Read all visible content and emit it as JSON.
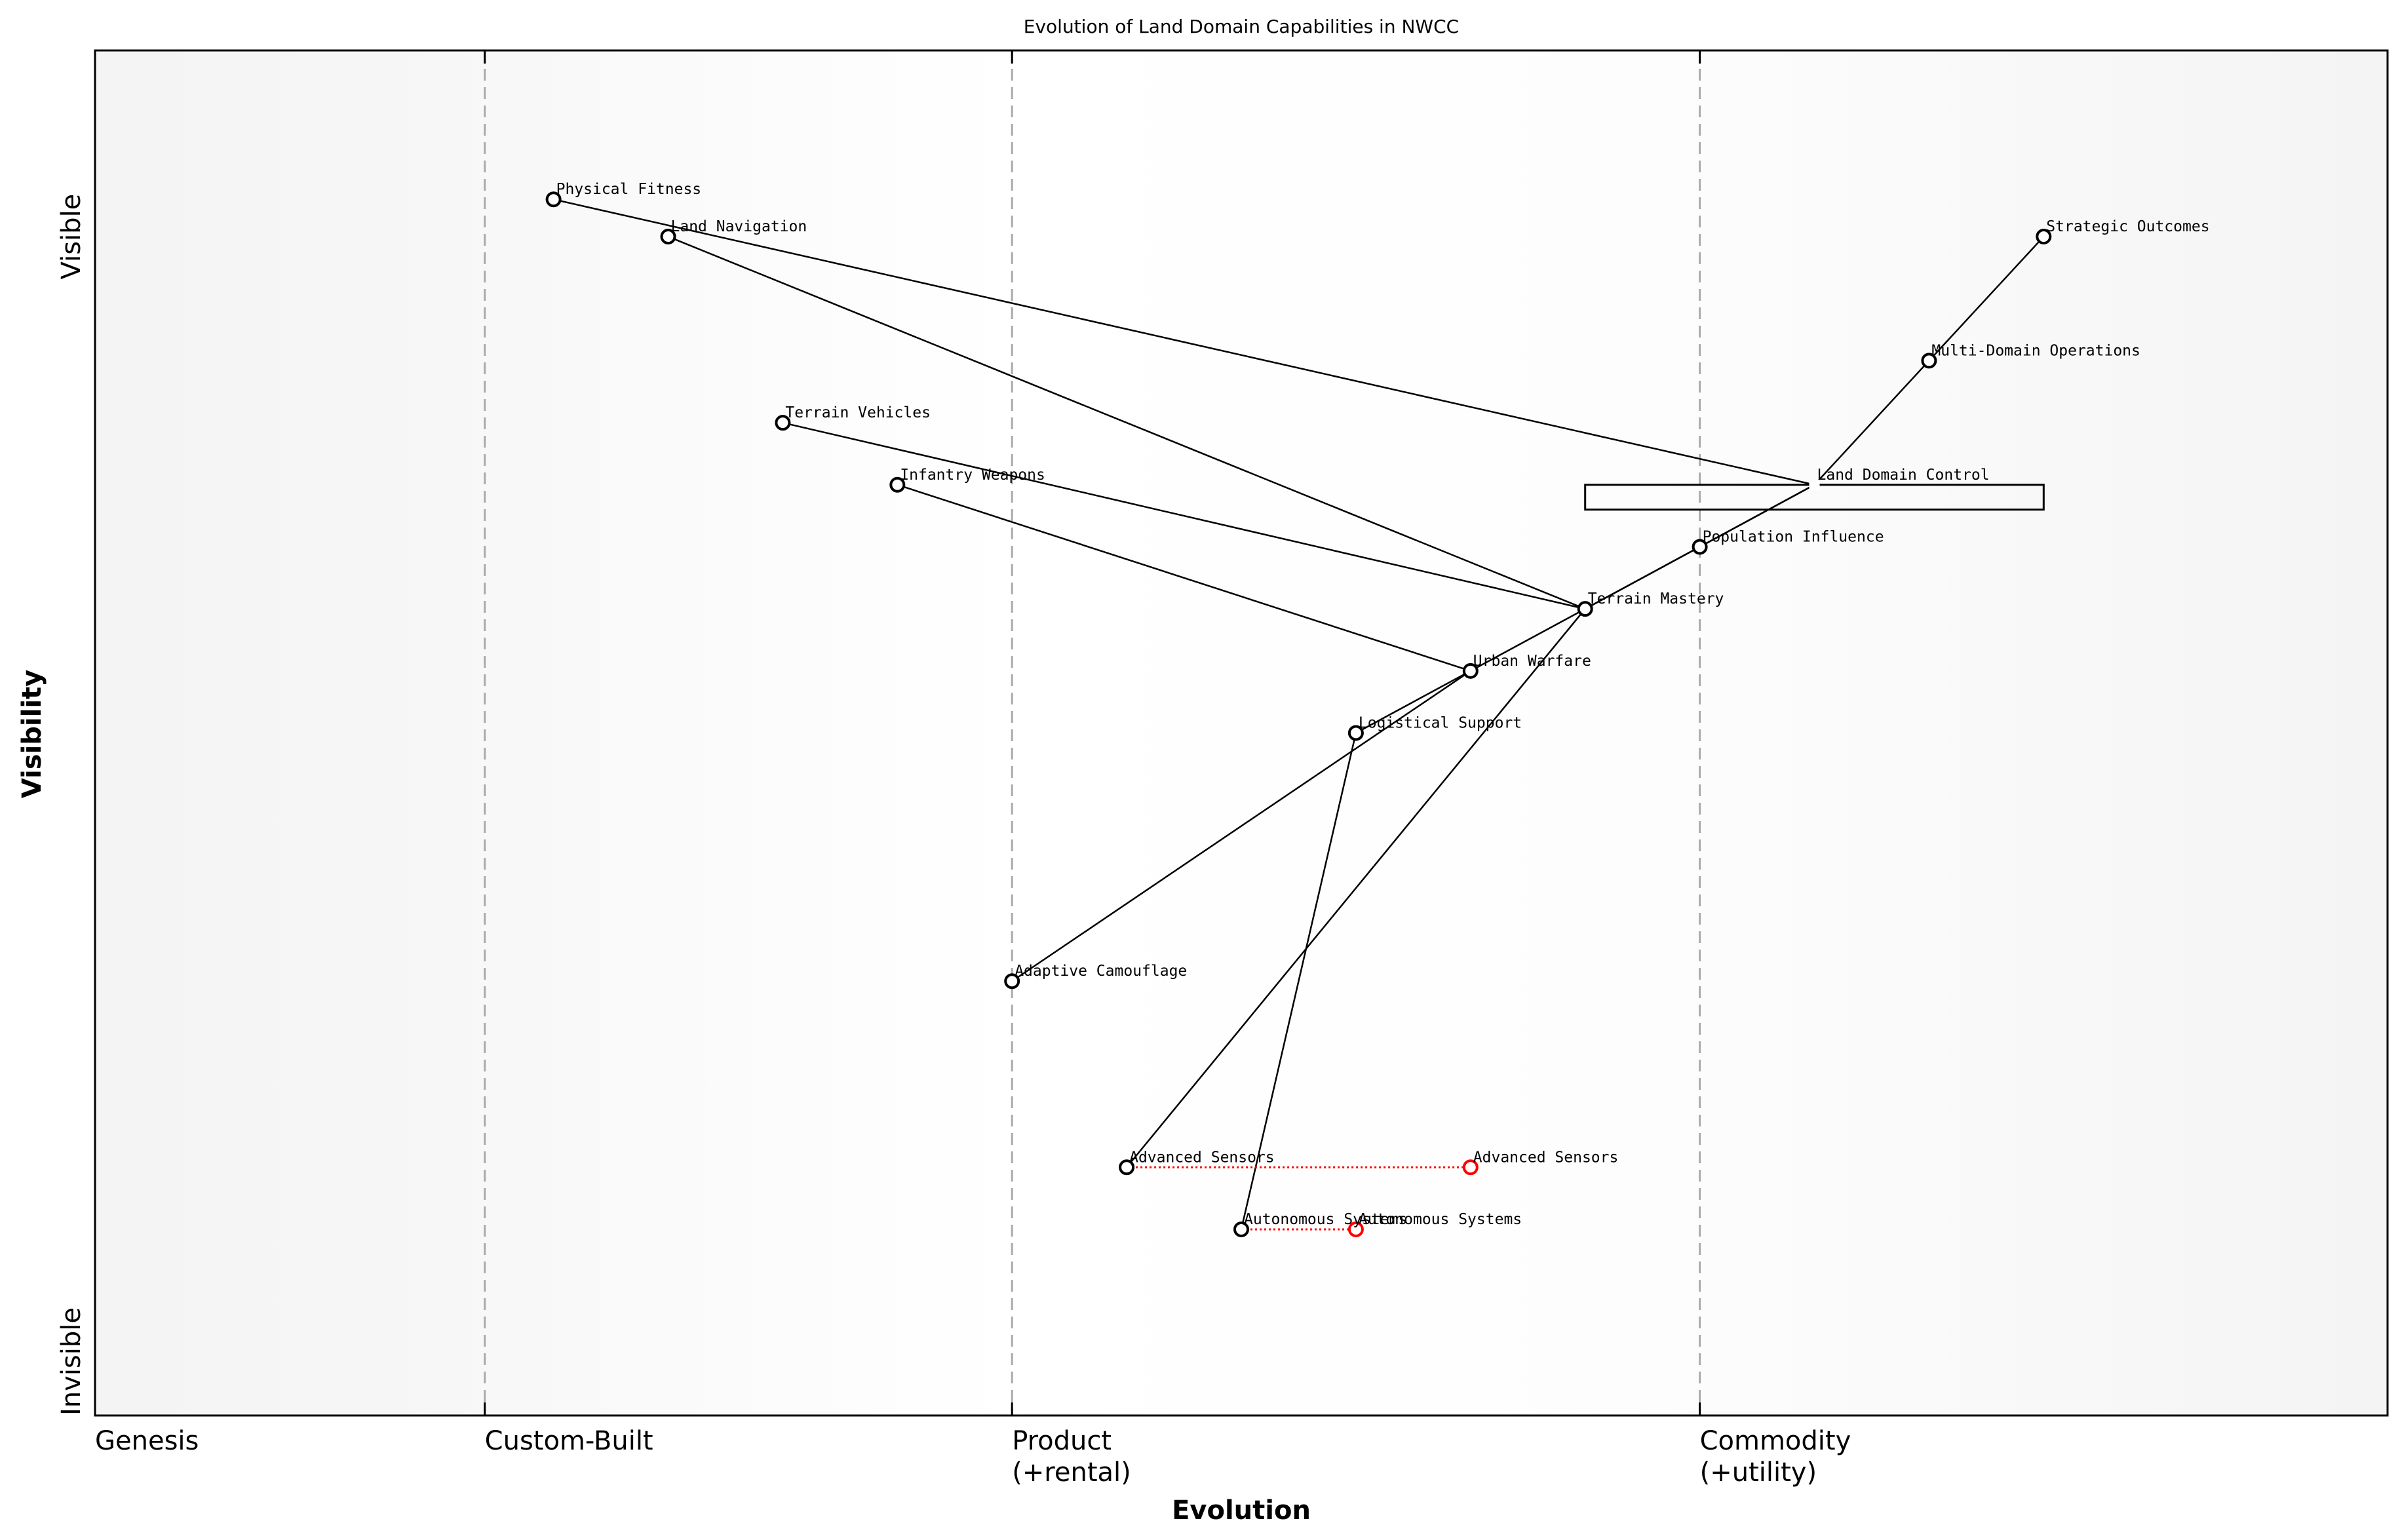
{
  "chart_data": {
    "type": "scatter",
    "title": "Evolution of Land Domain Capabilities in NWCC",
    "xlabel": "Evolution",
    "ylabel": "Visibility",
    "xlim": [
      0,
      1
    ],
    "ylim": [
      0,
      1.1
    ],
    "y_ticks": [
      {
        "label": "Visible",
        "value": 0.95
      },
      {
        "label": "Invisible",
        "value": 0
      }
    ],
    "stages": [
      {
        "label": "Genesis",
        "value": 0
      },
      {
        "label": "Custom-Built",
        "value": 0.17
      },
      {
        "label": "Product\n(+rental)",
        "value": 0.4
      },
      {
        "label": "Commodity\n(+utility)",
        "value": 0.7
      }
    ],
    "components": [
      {
        "name": "Physical Fitness",
        "evolution": 0.2,
        "visibility": 0.98
      },
      {
        "name": "Land Navigation",
        "evolution": 0.25,
        "visibility": 0.95
      },
      {
        "name": "Terrain Vehicles",
        "evolution": 0.3,
        "visibility": 0.8
      },
      {
        "name": "Infantry Weapons",
        "evolution": 0.35,
        "visibility": 0.75
      },
      {
        "name": "Adaptive Camouflage",
        "evolution": 0.4,
        "visibility": 0.35
      },
      {
        "name": "Advanced Sensors",
        "evolution": 0.45,
        "visibility": 0.2
      },
      {
        "name": "Autonomous Systems",
        "evolution": 0.5,
        "visibility": 0.15
      },
      {
        "name": "Logistical Support",
        "evolution": 0.55,
        "visibility": 0.55
      },
      {
        "name": "Urban Warfare",
        "evolution": 0.6,
        "visibility": 0.6
      },
      {
        "name": "Terrain Mastery",
        "evolution": 0.65,
        "visibility": 0.65
      },
      {
        "name": "Population Influence",
        "evolution": 0.7,
        "visibility": 0.7
      },
      {
        "name": "Land Domain Control",
        "evolution": 0.75,
        "visibility": 0.75,
        "marker": "square"
      },
      {
        "name": "Multi-Domain Operations",
        "evolution": 0.8,
        "visibility": 0.85
      },
      {
        "name": "Strategic Outcomes",
        "evolution": 0.85,
        "visibility": 0.95
      }
    ],
    "links": [
      [
        "Physical Fitness",
        "Land Domain Control"
      ],
      [
        "Land Navigation",
        "Terrain Mastery"
      ],
      [
        "Terrain Vehicles",
        "Terrain Mastery"
      ],
      [
        "Infantry Weapons",
        "Urban Warfare"
      ],
      [
        "Strategic Outcomes",
        "Multi-Domain Operations"
      ],
      [
        "Multi-Domain Operations",
        "Land Domain Control"
      ],
      [
        "Land Domain Control",
        "Population Influence"
      ],
      [
        "Land Domain Control",
        "Terrain Mastery"
      ],
      [
        "Population Influence",
        "Terrain Mastery"
      ],
      [
        "Terrain Mastery",
        "Urban Warfare"
      ],
      [
        "Terrain Mastery",
        "Advanced Sensors"
      ],
      [
        "Urban Warfare",
        "Logistical Support"
      ],
      [
        "Urban Warfare",
        "Adaptive Camouflage"
      ],
      [
        "Logistical Support",
        "Autonomous Systems"
      ]
    ],
    "evolutions": [
      {
        "name": "Advanced Sensors",
        "from": 0.45,
        "to": 0.6,
        "visibility": 0.2
      },
      {
        "name": "Autonomous Systems",
        "from": 0.5,
        "to": 0.55,
        "visibility": 0.15
      }
    ],
    "pipelines": [
      {
        "from": 0.65,
        "to": 0.85,
        "visibility_top": 0.75,
        "visibility_bottom": 0.73
      }
    ],
    "colors": {
      "evolve": "#ff0000",
      "stage_line": "#aaaaaa",
      "marker": "#000000"
    }
  }
}
